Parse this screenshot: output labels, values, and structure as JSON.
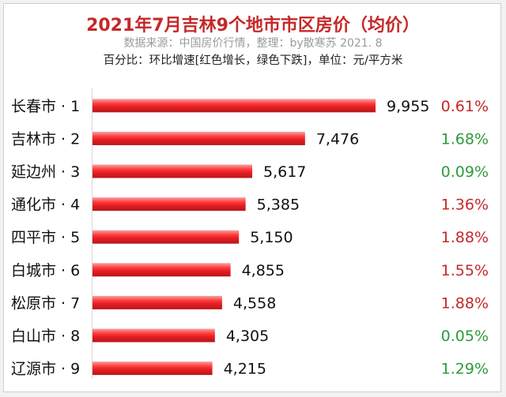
{
  "header": {
    "title": "2021年7月吉林9个地市市区房价（均价）",
    "source": "数据来源：中国房价行情，整理：by散寒苏  2021. 8",
    "note": "百分比：环比增速[红色增长，绿色下跌]，单位：元/平方米"
  },
  "colors": {
    "bar": "#e41e22",
    "title": "#c62828",
    "pct_red": "#c62828",
    "pct_green": "#2e9b3a"
  },
  "chart_data": {
    "type": "bar",
    "orientation": "horizontal",
    "xlim": [
      0,
      10000
    ],
    "categories": [
      "长春市 · 1",
      "吉林市 · 2",
      "延边州 · 3",
      "通化市 · 4",
      "四平市 · 5",
      "白城市 · 6",
      "松原市 · 7",
      "白山市 · 8",
      "辽源市 · 9"
    ],
    "values": [
      9955,
      7476,
      5617,
      5385,
      5150,
      4855,
      4558,
      4305,
      4215
    ],
    "value_labels": [
      "9,955",
      "7,476",
      "5,617",
      "5,385",
      "5,150",
      "4,855",
      "4,558",
      "4,305",
      "4,215"
    ],
    "change_labels": [
      "0.61%",
      "1.68%",
      "0.09%",
      "1.36%",
      "1.88%",
      "1.55%",
      "1.88%",
      "0.05%",
      "1.29%"
    ],
    "change_colors": [
      "red",
      "green",
      "green",
      "red",
      "red",
      "red",
      "red",
      "green",
      "green"
    ]
  }
}
